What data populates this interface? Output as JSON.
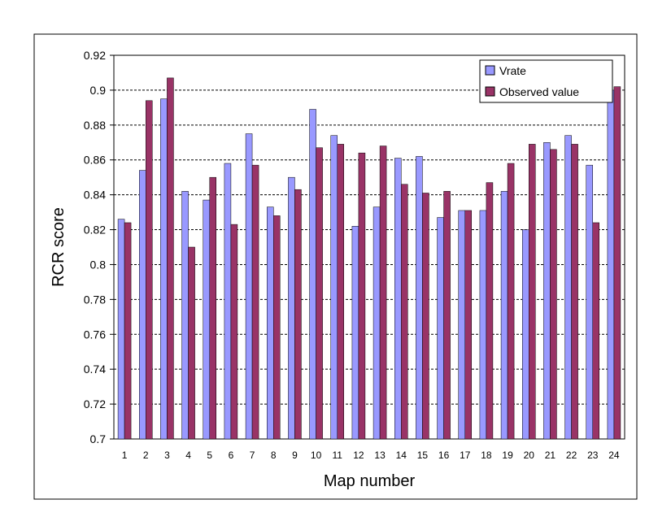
{
  "chart_data": {
    "type": "bar",
    "title": "",
    "xlabel": "Map number",
    "ylabel": "RCR score",
    "ylim": [
      0.7,
      0.92
    ],
    "yticks": [
      "0.7",
      "0.72",
      "0.74",
      "0.76",
      "0.78",
      "0.8",
      "0.82",
      "0.84",
      "0.86",
      "0.88",
      "0.9",
      "0.92"
    ],
    "categories": [
      "1",
      "2",
      "3",
      "4",
      "5",
      "6",
      "7",
      "8",
      "9",
      "10",
      "11",
      "12",
      "13",
      "14",
      "15",
      "16",
      "17",
      "18",
      "19",
      "20",
      "21",
      "22",
      "23",
      "24"
    ],
    "series": [
      {
        "name": "Vrate",
        "color": "#9999ff",
        "values": [
          0.826,
          0.854,
          0.895,
          0.842,
          0.837,
          0.858,
          0.875,
          0.833,
          0.85,
          0.889,
          0.874,
          0.822,
          0.833,
          0.861,
          0.862,
          0.827,
          0.831,
          0.831,
          0.842,
          0.82,
          0.87,
          0.874,
          0.857,
          0.9
        ]
      },
      {
        "name": "Observed value",
        "color": "#993366",
        "values": [
          0.824,
          0.894,
          0.907,
          0.81,
          0.85,
          0.823,
          0.857,
          0.828,
          0.843,
          0.867,
          0.869,
          0.864,
          0.868,
          0.846,
          0.841,
          0.842,
          0.831,
          0.847,
          0.858,
          0.869,
          0.866,
          0.869,
          0.824,
          0.902
        ]
      }
    ],
    "grid": true,
    "legend_position": "top-right"
  }
}
